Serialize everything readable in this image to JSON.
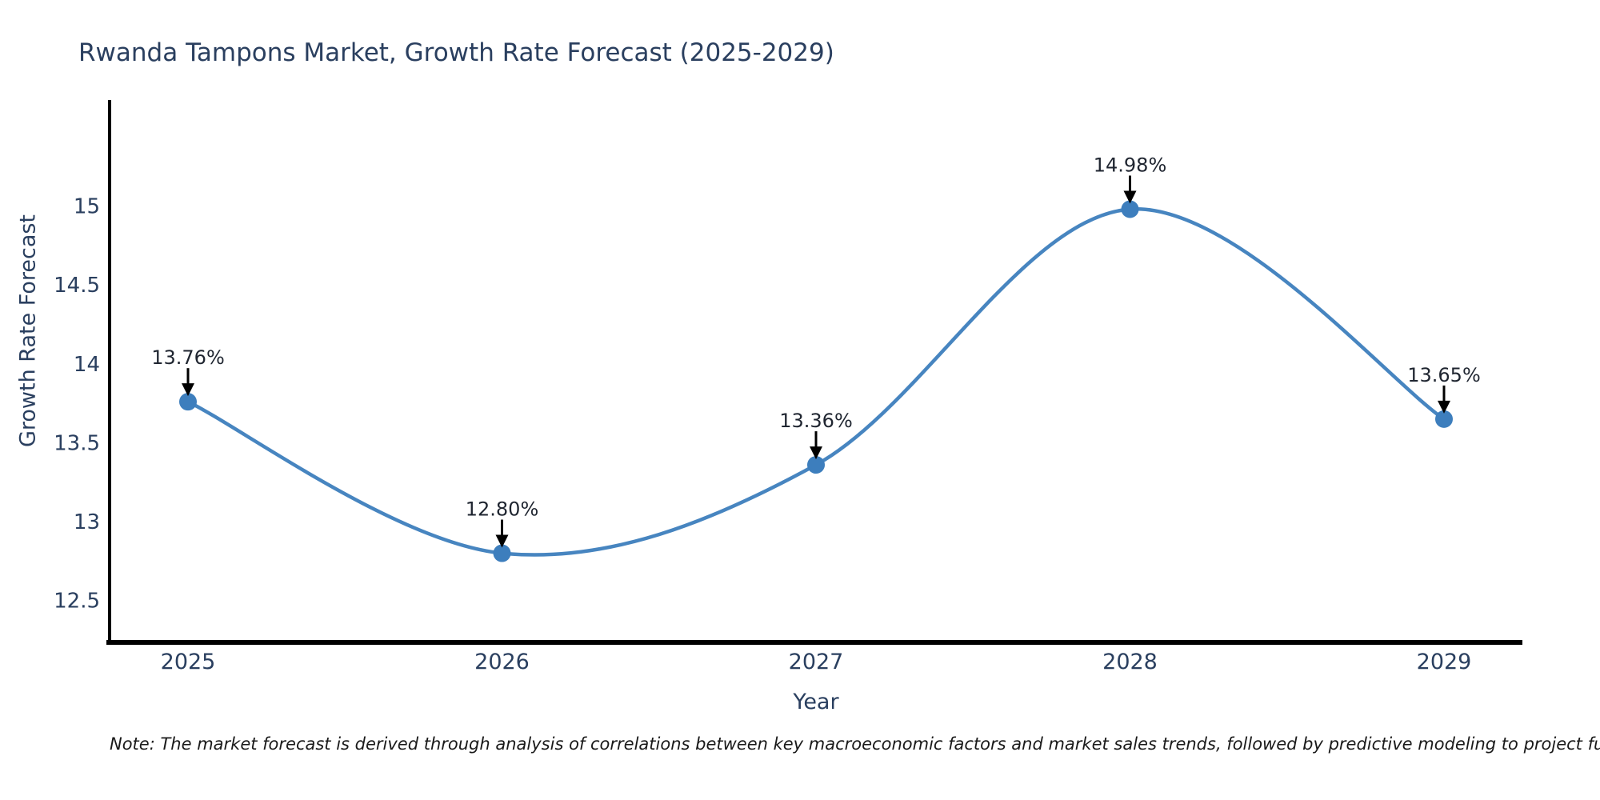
{
  "header": {
    "title": "Rwanda Tampons Market, Growth Rate Forecast (2025-2029)"
  },
  "chart_data": {
    "type": "line",
    "title": "Rwanda Tampons Market, Growth Rate Forecast (2025-2029)",
    "xlabel": "Year",
    "ylabel": "Growth Rate Forecast",
    "categories": [
      "2025",
      "2026",
      "2027",
      "2028",
      "2029"
    ],
    "values": [
      13.76,
      12.8,
      13.36,
      14.98,
      13.65
    ],
    "point_labels": [
      "13.76%",
      "12.80%",
      "13.36%",
      "14.98%",
      "13.65%"
    ],
    "ytick_labels": [
      "12.5",
      "13",
      "13.5",
      "14",
      "14.5",
      "15"
    ],
    "ytick_values": [
      12.5,
      13,
      13.5,
      14,
      14.5,
      15
    ],
    "ylim": [
      12.235,
      15.672
    ],
    "curve": "spline",
    "grid": false,
    "legend": false,
    "line_color": "#3d7ebd",
    "marker_color": "#3d7ebd",
    "annotation_arrow_color": "#000000",
    "annotation_text_color": "#1f2530",
    "axis_line_color": "#000000",
    "label_color": "#2a3f5f"
  },
  "footnote": {
    "text": "Note: The market forecast is derived through analysis of correlations between key macroeconomic factors and market sales trends, followed by predictive modeling to project future sal"
  }
}
